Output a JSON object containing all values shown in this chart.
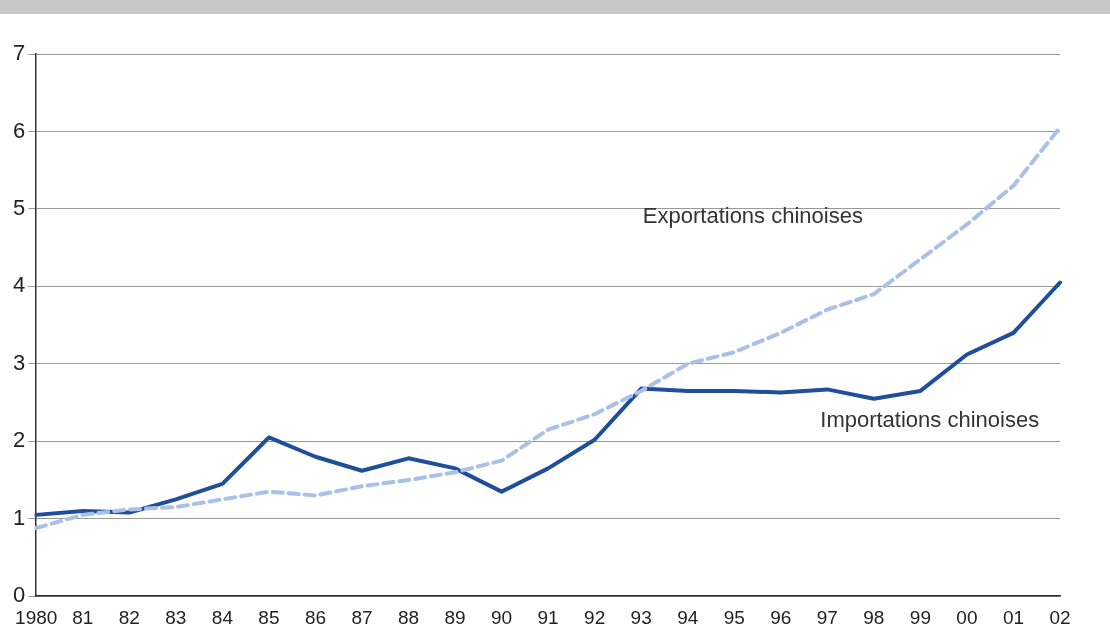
{
  "chart_data": {
    "type": "line",
    "categories": [
      "1980",
      "81",
      "82",
      "83",
      "84",
      "85",
      "86",
      "87",
      "88",
      "89",
      "90",
      "91",
      "92",
      "93",
      "94",
      "95",
      "96",
      "97",
      "98",
      "99",
      "00",
      "01",
      "02"
    ],
    "series": [
      {
        "name": "Exportations chinoises",
        "color": "#a9c0e8",
        "line_style": "dashed",
        "values": [
          0.88,
          1.05,
          1.12,
          1.15,
          1.25,
          1.35,
          1.3,
          1.42,
          1.5,
          1.6,
          1.75,
          2.15,
          2.35,
          2.65,
          3.0,
          3.15,
          3.4,
          3.7,
          3.9,
          4.35,
          4.8,
          5.3,
          6.05
        ]
      },
      {
        "name": "Importations chinoises",
        "color": "#1f4e9a",
        "line_style": "solid",
        "values": [
          1.05,
          1.1,
          1.08,
          1.25,
          1.45,
          2.05,
          1.8,
          1.62,
          1.78,
          1.65,
          1.35,
          1.65,
          2.02,
          2.68,
          2.65,
          2.65,
          2.63,
          2.67,
          2.55,
          2.65,
          3.12,
          3.4,
          4.05
        ]
      }
    ],
    "ylim": [
      0,
      7
    ],
    "yticks": [
      0,
      1,
      2,
      3,
      4,
      5,
      6,
      7
    ],
    "grid": "y",
    "legend": false,
    "marker": "none"
  }
}
